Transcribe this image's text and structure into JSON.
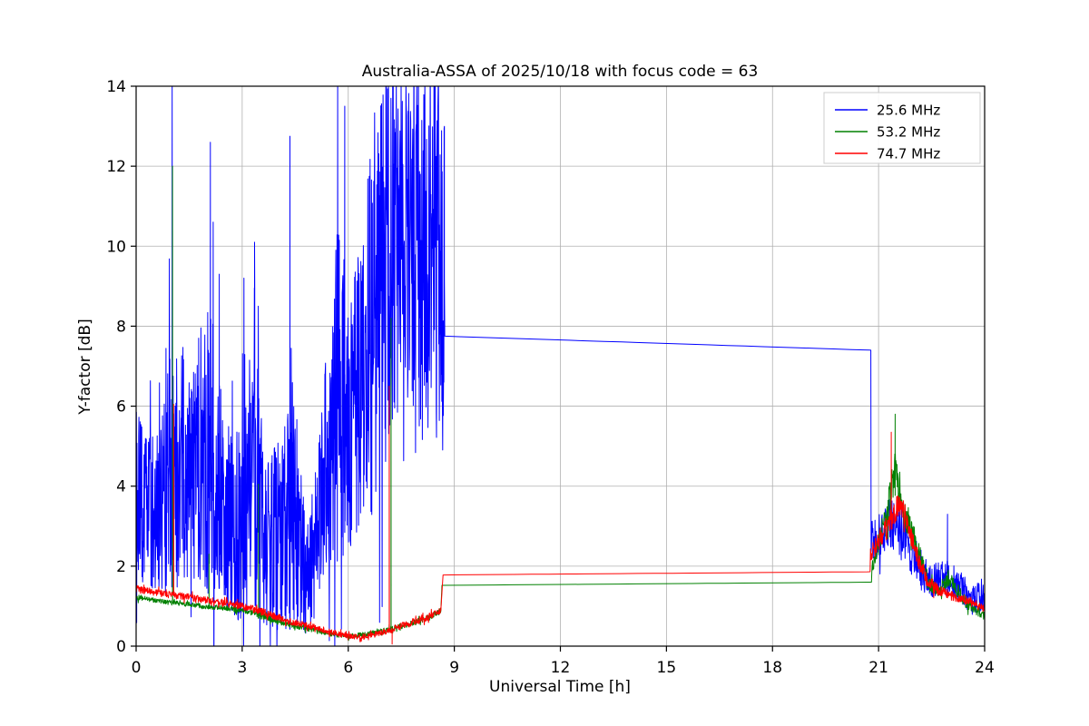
{
  "colors": {
    "background": "#ffffff",
    "grid": "#b0b0b0",
    "axis": "#000000",
    "text": "#000000",
    "legend_border": "#cccccc"
  },
  "chart_data": {
    "type": "line",
    "title": "Australia-ASSA of 2025/10/18 with focus code = 63",
    "xlabel": "Universal Time [h]",
    "ylabel": "Y-factor [dB]",
    "xlim": [
      0,
      24
    ],
    "ylim": [
      0,
      14
    ],
    "xticks": [
      0,
      3,
      6,
      9,
      12,
      15,
      18,
      21,
      24
    ],
    "yticks": [
      0,
      2,
      4,
      6,
      8,
      10,
      12,
      14
    ],
    "grid": true,
    "legend": {
      "position": "upper right",
      "entries": [
        "25.6 MHz",
        "53.2 MHz",
        "74.7 MHz"
      ]
    },
    "series": [
      {
        "name": "25.6 MHz",
        "color": "#0000ff",
        "segments": [
          {
            "step": 0.008,
            "x": [
              0,
              0.3,
              0.7,
              1.0,
              1.3,
              1.6,
              2.0,
              2.3,
              2.6,
              3.0,
              3.35,
              3.7,
              4.1,
              4.45,
              4.8,
              5.1,
              5.45,
              5.75,
              6.1,
              6.45,
              6.8,
              7.2,
              7.6,
              8.0,
              8.4,
              8.72
            ],
            "base": [
              3.8,
              3.2,
              3.5,
              4.2,
              4.8,
              4.2,
              5.2,
              4.2,
              3.2,
              3.0,
              4.2,
              2.6,
              2.8,
              3.6,
              1.6,
              2.6,
              4.8,
              6.5,
              5.2,
              6.8,
              8.8,
              9.6,
              10.4,
              9.4,
              9.8,
              9.2
            ],
            "amp": [
              2.2,
              2.0,
              2.4,
              3.2,
              3.0,
              2.6,
              3.8,
              3.0,
              2.4,
              2.4,
              3.2,
              2.2,
              2.4,
              3.2,
              1.5,
              2.2,
              3.2,
              4.5,
              3.6,
              4.2,
              5.2,
              4.6,
              4.0,
              4.8,
              4.4,
              4.6
            ]
          },
          {
            "step": 0.5,
            "x": [
              8.73,
              20.78
            ],
            "base": [
              7.75,
              7.4
            ],
            "amp": [
              0,
              0
            ]
          },
          {
            "step": 0.01,
            "x": [
              20.79,
              21.0,
              21.3,
              21.6,
              21.9,
              22.2,
              22.5,
              22.8,
              23.0,
              23.3,
              23.6,
              24.0
            ],
            "base": [
              2.6,
              2.8,
              3.0,
              2.9,
              2.4,
              1.9,
              1.6,
              1.8,
              1.7,
              1.5,
              1.2,
              1.1
            ],
            "amp": [
              0.5,
              0.6,
              0.7,
              0.7,
              0.6,
              0.5,
              0.4,
              0.5,
              0.5,
              0.45,
              0.4,
              0.55
            ]
          }
        ],
        "spikes": [
          [
            1.02,
            14.3
          ],
          [
            2.1,
            12.6
          ],
          [
            2.18,
            10.6
          ],
          [
            2.35,
            9.3
          ],
          [
            3.05,
            9.2
          ],
          [
            3.35,
            10.1
          ],
          [
            4.35,
            12.75
          ],
          [
            5.7,
            14.3
          ],
          [
            5.9,
            13.5
          ],
          [
            8.55,
            14.2
          ],
          [
            22.95,
            3.3
          ]
        ]
      },
      {
        "name": "53.2 MHz",
        "color": "#008000",
        "segments": [
          {
            "step": 0.01,
            "x": [
              0,
              0.5,
              1.0,
              1.5,
              2.0,
              2.5,
              3.0,
              3.5,
              4.0,
              4.5,
              5.0,
              5.5,
              6.0,
              6.5,
              7.0,
              7.5,
              8.0,
              8.3,
              8.62
            ],
            "base": [
              1.22,
              1.15,
              1.08,
              1.05,
              0.98,
              0.95,
              0.9,
              0.78,
              0.62,
              0.5,
              0.42,
              0.3,
              0.25,
              0.3,
              0.38,
              0.5,
              0.62,
              0.72,
              0.88
            ],
            "amp": [
              0.07,
              0.06,
              0.06,
              0.06,
              0.06,
              0.06,
              0.07,
              0.1,
              0.07,
              0.07,
              0.07,
              0.06,
              0.06,
              0.06,
              0.07,
              0.07,
              0.07,
              0.07,
              0.08
            ]
          },
          {
            "step": 0.5,
            "x": [
              8.65,
              20.8
            ],
            "base": [
              1.52,
              1.6
            ],
            "amp": [
              0,
              0
            ]
          },
          {
            "step": 0.01,
            "x": [
              20.81,
              21.0,
              21.2,
              21.45,
              21.65,
              21.9,
              22.15,
              22.4,
              22.7,
              22.95,
              23.15,
              23.45,
              23.75,
              24.0
            ],
            "base": [
              1.9,
              2.5,
              3.1,
              4.3,
              3.5,
              3.0,
              2.3,
              1.6,
              1.35,
              1.7,
              1.5,
              1.1,
              0.9,
              0.72
            ],
            "amp": [
              0.2,
              0.3,
              0.4,
              0.6,
              0.4,
              0.35,
              0.3,
              0.2,
              0.15,
              0.25,
              0.2,
              0.15,
              0.12,
              0.12
            ]
          }
        ],
        "spikes": [
          [
            1.03,
            12.0
          ],
          [
            2.06,
            2.3
          ],
          [
            3.46,
            4.05
          ],
          [
            7.21,
            8.2
          ],
          [
            21.47,
            5.8
          ]
        ]
      },
      {
        "name": "74.7 MHz",
        "color": "#ff0000",
        "segments": [
          {
            "step": 0.01,
            "x": [
              0,
              0.5,
              1.0,
              1.5,
              2.0,
              2.5,
              3.0,
              3.5,
              4.0,
              4.5,
              5.0,
              5.5,
              6.0,
              6.3,
              6.7,
              7.0,
              7.5,
              8.0,
              8.3,
              8.62
            ],
            "base": [
              1.42,
              1.35,
              1.28,
              1.22,
              1.15,
              1.08,
              1.0,
              0.88,
              0.72,
              0.58,
              0.48,
              0.35,
              0.25,
              0.22,
              0.28,
              0.35,
              0.5,
              0.65,
              0.75,
              0.9
            ],
            "amp": [
              0.1,
              0.09,
              0.09,
              0.09,
              0.09,
              0.09,
              0.09,
              0.1,
              0.09,
              0.09,
              0.08,
              0.08,
              0.07,
              0.07,
              0.07,
              0.08,
              0.09,
              0.09,
              0.09,
              0.09
            ]
          },
          {
            "step": 0.5,
            "x": [
              8.68,
              20.76
            ],
            "base": [
              1.78,
              1.86
            ],
            "amp": [
              0,
              0
            ]
          },
          {
            "step": 0.01,
            "x": [
              20.77,
              21.0,
              21.2,
              21.4,
              21.6,
              21.85,
              22.1,
              22.4,
              22.7,
              23.0,
              23.3,
              23.6,
              24.0
            ],
            "base": [
              2.35,
              2.65,
              2.9,
              3.3,
              3.6,
              3.0,
              2.2,
              1.6,
              1.4,
              1.28,
              1.2,
              1.1,
              0.92
            ],
            "amp": [
              0.2,
              0.25,
              0.3,
              0.35,
              0.3,
              0.3,
              0.25,
              0.18,
              0.14,
              0.12,
              0.12,
              0.1,
              0.1
            ]
          }
        ],
        "spikes": [
          [
            1.06,
            6.05
          ],
          [
            7.16,
            6.5
          ],
          [
            7.24,
            0.05
          ],
          [
            21.36,
            5.35
          ]
        ]
      }
    ]
  }
}
